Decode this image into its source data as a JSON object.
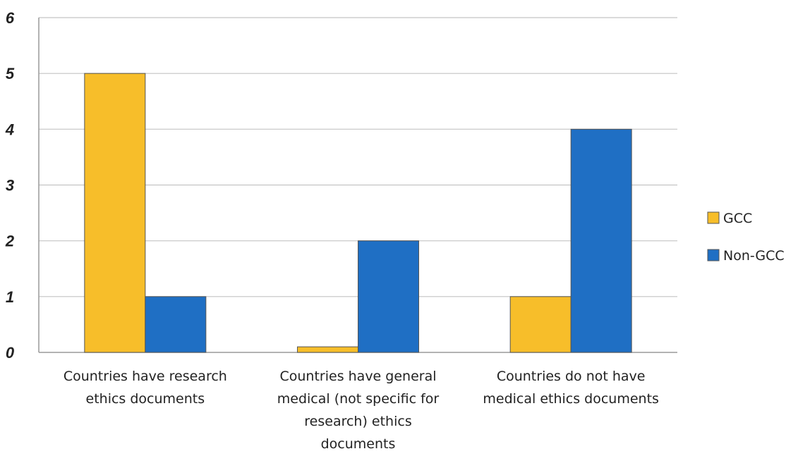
{
  "chart_data": {
    "type": "bar",
    "categories": [
      [
        "Countries have research",
        "ethics documents"
      ],
      [
        "Countries have general",
        "medical (not specific for",
        "research) ethics",
        "documents"
      ],
      [
        "Countries do not have",
        "medical ethics documents"
      ]
    ],
    "series": [
      {
        "name": "GCC",
        "values": [
          5,
          0.1,
          1
        ],
        "color": "#F7BE2A"
      },
      {
        "name": "Non-GCC",
        "values": [
          1,
          2,
          4
        ],
        "color": "#1F6FC4"
      }
    ],
    "yticks": [
      "0",
      "1",
      "2",
      "3",
      "4",
      "5",
      "6"
    ],
    "ylim": [
      0,
      6
    ],
    "grid": true,
    "legend_position": "right",
    "title": "",
    "xlabel": "",
    "ylabel": ""
  }
}
